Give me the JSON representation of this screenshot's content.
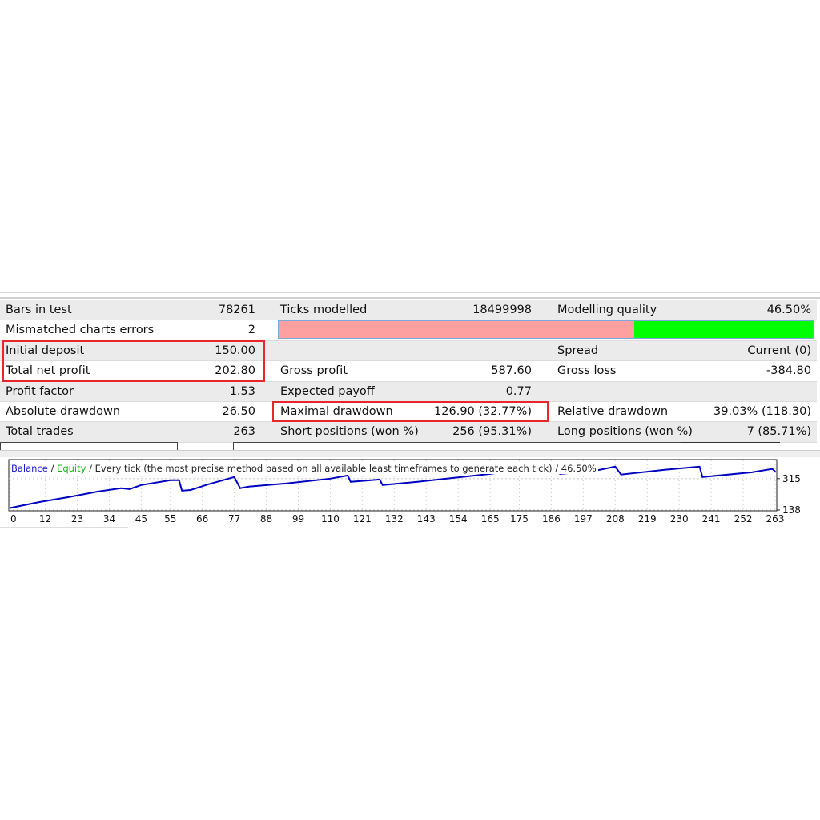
{
  "report": {
    "rows": [
      [
        {
          "label": "Bars in test",
          "value": "78261"
        },
        {
          "label": "Ticks modelled",
          "value": "18499998"
        },
        {
          "label": "Modelling quality",
          "value": "46.50%"
        }
      ],
      [
        {
          "label": "Mismatched charts errors",
          "value": "2"
        },
        null,
        null
      ],
      [
        {
          "label": "Initial deposit",
          "value": "150.00"
        },
        null,
        {
          "label": "Spread",
          "value": "Current (0)"
        }
      ],
      [
        {
          "label": "Total net profit",
          "value": "202.80"
        },
        {
          "label": "Gross profit",
          "value": "587.60"
        },
        {
          "label": "Gross loss",
          "value": "-384.80"
        }
      ],
      [
        {
          "label": "Profit factor",
          "value": "1.53"
        },
        {
          "label": "Expected payoff",
          "value": "0.77"
        },
        null
      ],
      [
        {
          "label": "Absolute drawdown",
          "value": "26.50"
        },
        {
          "label": "Maximal drawdown",
          "value": "126.90 (32.77%)"
        },
        {
          "label": "Relative drawdown",
          "value": "39.03% (118.30)"
        }
      ],
      [
        {
          "label": "Total trades",
          "value": "263"
        },
        {
          "label": "Short positions (won %)",
          "value": "256 (95.31%)"
        },
        {
          "label": "Long positions (won %)",
          "value": "7 (85.71%)"
        }
      ]
    ],
    "modelling_quality_fraction": 0.665,
    "quality_colors": {
      "bad": "#ffa0a0",
      "good": "#00ff00"
    },
    "highlight_color": "#e8262b"
  },
  "chart_legend": {
    "balance": "Balance",
    "sep1": " / ",
    "equity": "Equity",
    "rest": " / Every tick (the most precise method based on all available least timeframes to generate each tick) / 46.50%"
  },
  "chart_data": {
    "type": "line",
    "x_ticks": [
      "0",
      "12",
      "23",
      "34",
      "45",
      "55",
      "66",
      "77",
      "88",
      "99",
      "110",
      "121",
      "132",
      "143",
      "154",
      "165",
      "175",
      "186",
      "197",
      "208",
      "219",
      "230",
      "241",
      "252",
      "263"
    ],
    "y_ticks": [
      "315",
      "138"
    ],
    "ylim": [
      138,
      400
    ],
    "xlim": [
      0,
      263
    ],
    "grid": true,
    "series": [
      {
        "name": "Balance",
        "color": "#0000c0",
        "x": [
          0,
          10,
          20,
          30,
          38,
          41,
          45,
          55,
          58,
          59,
          62,
          68,
          77,
          79,
          82,
          95,
          110,
          116,
          117,
          127,
          128,
          140,
          165,
          186,
          189,
          200,
          208,
          210,
          225,
          237,
          238,
          255,
          262,
          263
        ],
        "y": [
          150,
          183,
          211,
          242,
          261,
          256,
          279,
          306,
          306,
          247,
          251,
          283,
          324,
          261,
          270,
          288,
          315,
          333,
          297,
          310,
          279,
          297,
          342,
          388,
          342,
          356,
          383,
          338,
          365,
          383,
          324,
          351,
          370,
          356
        ]
      }
    ]
  }
}
